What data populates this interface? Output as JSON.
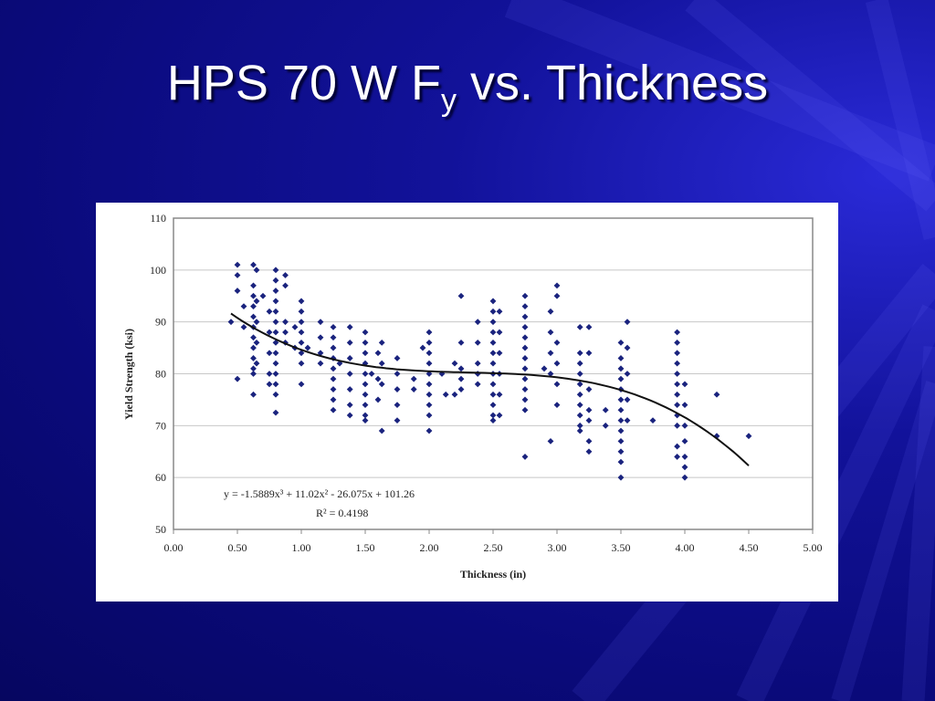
{
  "slide": {
    "title_main": "HPS 70 W F",
    "title_sub": "y",
    "title_rest": " vs. Thickness"
  },
  "colors": {
    "background": "#0a0a7a",
    "title": "#ffffff",
    "marker": "#1a237e",
    "trendline": "#111111",
    "gridline": "#c8c8c8"
  },
  "chart_data": {
    "type": "scatter",
    "xlabel": "Thickness (in)",
    "ylabel": "Yield Strength (ksi)",
    "xlim": [
      0,
      5
    ],
    "ylim": [
      50,
      110
    ],
    "x_ticks": [
      "0.00",
      "0.50",
      "1.00",
      "1.50",
      "2.00",
      "2.50",
      "3.00",
      "3.50",
      "4.00",
      "4.50",
      "5.00"
    ],
    "y_ticks": [
      "50",
      "60",
      "70",
      "80",
      "90",
      "100",
      "110"
    ],
    "grid": true,
    "equation_text": "y = -1.5889x³ + 11.02x² - 26.075x + 101.26",
    "r2_text": "R² = 0.4198",
    "trendline": {
      "type": "polynomial",
      "degree": 3,
      "coefficients": [
        -1.5889,
        11.02,
        -26.075,
        101.26
      ],
      "x_range": [
        0.45,
        4.5
      ]
    },
    "points": [
      [
        0.45,
        90
      ],
      [
        0.5,
        101
      ],
      [
        0.5,
        99
      ],
      [
        0.5,
        96
      ],
      [
        0.5,
        79
      ],
      [
        0.55,
        93
      ],
      [
        0.55,
        89
      ],
      [
        0.625,
        101
      ],
      [
        0.625,
        97
      ],
      [
        0.625,
        95
      ],
      [
        0.625,
        93
      ],
      [
        0.625,
        91
      ],
      [
        0.625,
        89
      ],
      [
        0.625,
        87
      ],
      [
        0.625,
        85
      ],
      [
        0.625,
        83
      ],
      [
        0.625,
        81
      ],
      [
        0.625,
        80
      ],
      [
        0.625,
        76
      ],
      [
        0.65,
        100
      ],
      [
        0.65,
        94
      ],
      [
        0.65,
        90
      ],
      [
        0.65,
        86
      ],
      [
        0.65,
        82
      ],
      [
        0.7,
        95
      ],
      [
        0.75,
        92
      ],
      [
        0.75,
        88
      ],
      [
        0.75,
        84
      ],
      [
        0.75,
        80
      ],
      [
        0.75,
        78
      ],
      [
        0.8,
        100
      ],
      [
        0.8,
        98
      ],
      [
        0.8,
        96
      ],
      [
        0.8,
        94
      ],
      [
        0.8,
        92
      ],
      [
        0.8,
        90
      ],
      [
        0.8,
        88
      ],
      [
        0.8,
        86
      ],
      [
        0.8,
        84
      ],
      [
        0.8,
        82
      ],
      [
        0.8,
        80
      ],
      [
        0.8,
        78
      ],
      [
        0.8,
        76
      ],
      [
        0.8,
        72.5
      ],
      [
        0.875,
        99
      ],
      [
        0.875,
        97
      ],
      [
        0.875,
        90
      ],
      [
        0.875,
        88
      ],
      [
        0.875,
        86
      ],
      [
        0.95,
        89
      ],
      [
        0.95,
        85
      ],
      [
        1.0,
        94
      ],
      [
        1.0,
        92
      ],
      [
        1.0,
        90
      ],
      [
        1.0,
        88
      ],
      [
        1.0,
        86
      ],
      [
        1.0,
        84
      ],
      [
        1.0,
        82
      ],
      [
        1.0,
        78
      ],
      [
        1.05,
        85
      ],
      [
        1.15,
        90
      ],
      [
        1.15,
        87
      ],
      [
        1.15,
        84
      ],
      [
        1.15,
        82
      ],
      [
        1.25,
        89
      ],
      [
        1.25,
        87
      ],
      [
        1.25,
        85
      ],
      [
        1.25,
        83
      ],
      [
        1.25,
        81
      ],
      [
        1.25,
        79
      ],
      [
        1.25,
        77
      ],
      [
        1.25,
        75
      ],
      [
        1.25,
        73
      ],
      [
        1.3,
        82
      ],
      [
        1.38,
        89
      ],
      [
        1.38,
        86
      ],
      [
        1.38,
        83
      ],
      [
        1.38,
        80
      ],
      [
        1.38,
        77
      ],
      [
        1.38,
        74
      ],
      [
        1.38,
        72
      ],
      [
        1.5,
        88
      ],
      [
        1.5,
        86
      ],
      [
        1.5,
        84
      ],
      [
        1.5,
        82
      ],
      [
        1.5,
        80
      ],
      [
        1.5,
        78
      ],
      [
        1.5,
        76
      ],
      [
        1.5,
        74
      ],
      [
        1.5,
        72
      ],
      [
        1.5,
        71
      ],
      [
        1.55,
        80
      ],
      [
        1.6,
        84
      ],
      [
        1.6,
        79
      ],
      [
        1.6,
        75
      ],
      [
        1.63,
        86
      ],
      [
        1.63,
        82
      ],
      [
        1.63,
        78
      ],
      [
        1.63,
        69
      ],
      [
        1.75,
        83
      ],
      [
        1.75,
        80
      ],
      [
        1.75,
        77
      ],
      [
        1.75,
        74
      ],
      [
        1.75,
        71
      ],
      [
        1.88,
        79
      ],
      [
        1.88,
        77
      ],
      [
        1.95,
        85
      ],
      [
        2.0,
        88
      ],
      [
        2.0,
        86
      ],
      [
        2.0,
        84
      ],
      [
        2.0,
        82
      ],
      [
        2.0,
        80
      ],
      [
        2.0,
        78
      ],
      [
        2.0,
        76
      ],
      [
        2.0,
        74
      ],
      [
        2.0,
        72
      ],
      [
        2.0,
        69
      ],
      [
        2.1,
        80
      ],
      [
        2.13,
        76
      ],
      [
        2.2,
        82
      ],
      [
        2.2,
        76
      ],
      [
        2.25,
        95
      ],
      [
        2.25,
        86
      ],
      [
        2.25,
        81
      ],
      [
        2.25,
        79
      ],
      [
        2.25,
        77
      ],
      [
        2.38,
        90
      ],
      [
        2.38,
        86
      ],
      [
        2.38,
        82
      ],
      [
        2.38,
        80
      ],
      [
        2.38,
        78
      ],
      [
        2.5,
        94
      ],
      [
        2.5,
        92
      ],
      [
        2.5,
        90
      ],
      [
        2.5,
        88
      ],
      [
        2.5,
        86
      ],
      [
        2.5,
        84
      ],
      [
        2.5,
        82
      ],
      [
        2.5,
        80
      ],
      [
        2.5,
        78
      ],
      [
        2.5,
        76
      ],
      [
        2.5,
        74
      ],
      [
        2.5,
        72
      ],
      [
        2.5,
        71
      ],
      [
        2.55,
        92
      ],
      [
        2.55,
        88
      ],
      [
        2.55,
        84
      ],
      [
        2.55,
        80
      ],
      [
        2.55,
        76
      ],
      [
        2.55,
        72
      ],
      [
        2.75,
        95
      ],
      [
        2.75,
        93
      ],
      [
        2.75,
        91
      ],
      [
        2.75,
        89
      ],
      [
        2.75,
        87
      ],
      [
        2.75,
        85
      ],
      [
        2.75,
        83
      ],
      [
        2.75,
        81
      ],
      [
        2.75,
        79
      ],
      [
        2.75,
        77
      ],
      [
        2.75,
        75
      ],
      [
        2.75,
        73
      ],
      [
        2.75,
        64
      ],
      [
        2.9,
        81
      ],
      [
        2.95,
        92
      ],
      [
        2.95,
        88
      ],
      [
        2.95,
        84
      ],
      [
        2.95,
        80
      ],
      [
        2.95,
        67
      ],
      [
        3.0,
        97
      ],
      [
        3.0,
        95
      ],
      [
        3.0,
        86
      ],
      [
        3.0,
        82
      ],
      [
        3.0,
        78
      ],
      [
        3.0,
        74
      ],
      [
        3.18,
        89
      ],
      [
        3.18,
        84
      ],
      [
        3.18,
        82
      ],
      [
        3.18,
        80
      ],
      [
        3.18,
        78
      ],
      [
        3.18,
        76
      ],
      [
        3.18,
        74
      ],
      [
        3.18,
        72
      ],
      [
        3.18,
        70
      ],
      [
        3.18,
        69
      ],
      [
        3.25,
        89
      ],
      [
        3.25,
        84
      ],
      [
        3.25,
        77
      ],
      [
        3.25,
        73
      ],
      [
        3.25,
        71
      ],
      [
        3.25,
        67
      ],
      [
        3.25,
        65
      ],
      [
        3.38,
        73
      ],
      [
        3.38,
        70
      ],
      [
        3.5,
        86
      ],
      [
        3.5,
        83
      ],
      [
        3.5,
        81
      ],
      [
        3.5,
        79
      ],
      [
        3.5,
        77
      ],
      [
        3.5,
        75
      ],
      [
        3.5,
        73
      ],
      [
        3.5,
        71
      ],
      [
        3.5,
        69
      ],
      [
        3.5,
        67
      ],
      [
        3.5,
        65
      ],
      [
        3.5,
        63
      ],
      [
        3.5,
        60
      ],
      [
        3.55,
        90
      ],
      [
        3.55,
        85
      ],
      [
        3.55,
        80
      ],
      [
        3.55,
        75
      ],
      [
        3.55,
        71
      ],
      [
        3.75,
        71
      ],
      [
        3.94,
        88
      ],
      [
        3.94,
        86
      ],
      [
        3.94,
        84
      ],
      [
        3.94,
        82
      ],
      [
        3.94,
        80
      ],
      [
        3.94,
        78
      ],
      [
        3.94,
        76
      ],
      [
        3.94,
        74
      ],
      [
        3.94,
        72
      ],
      [
        3.94,
        70
      ],
      [
        3.94,
        66
      ],
      [
        3.94,
        64
      ],
      [
        4.0,
        78
      ],
      [
        4.0,
        74
      ],
      [
        4.0,
        70
      ],
      [
        4.0,
        67
      ],
      [
        4.0,
        64
      ],
      [
        4.0,
        62
      ],
      [
        4.0,
        60
      ],
      [
        4.25,
        76
      ],
      [
        4.25,
        68
      ],
      [
        4.5,
        68
      ]
    ]
  }
}
